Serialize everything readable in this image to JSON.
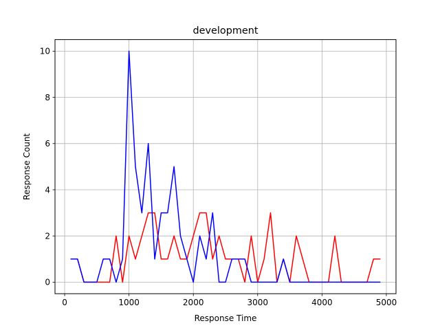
{
  "chart_data": {
    "type": "line",
    "title": "development",
    "xlabel": "Response Time",
    "ylabel": "Response Count",
    "xlim": [
      -150,
      5150
    ],
    "ylim": [
      -0.5,
      10.5
    ],
    "xticks": [
      0,
      1000,
      2000,
      3000,
      4000,
      5000
    ],
    "yticks": [
      0,
      2,
      4,
      6,
      8,
      10
    ],
    "grid": true,
    "x": [
      100,
      200,
      300,
      400,
      500,
      600,
      700,
      800,
      900,
      1000,
      1100,
      1200,
      1300,
      1400,
      1500,
      1600,
      1700,
      1800,
      1900,
      2000,
      2100,
      2200,
      2300,
      2400,
      2500,
      2600,
      2700,
      2800,
      2900,
      3000,
      3100,
      3200,
      3300,
      3400,
      3500,
      3600,
      3700,
      3800,
      3900,
      4000,
      4100,
      4200,
      4300,
      4400,
      4500,
      4600,
      4700,
      4800,
      4900
    ],
    "series": [
      {
        "color": "#ff0000",
        "values": [
          1,
          1,
          0,
          0,
          0,
          0,
          0,
          2,
          0,
          2,
          1,
          2,
          3,
          3,
          1,
          1,
          2,
          1,
          1,
          2,
          3,
          3,
          1,
          2,
          1,
          1,
          1,
          0,
          2,
          0,
          1,
          3,
          0,
          1,
          0,
          2,
          1,
          0,
          0,
          0,
          0,
          2,
          0,
          0,
          0,
          0,
          0,
          1,
          1
        ]
      },
      {
        "color": "#0000ff",
        "values": [
          1,
          1,
          0,
          0,
          0,
          1,
          1,
          0,
          1,
          10,
          5,
          3,
          6,
          1,
          3,
          3,
          5,
          2,
          1,
          0,
          2,
          1,
          3,
          0,
          0,
          1,
          1,
          1,
          0,
          0,
          0,
          0,
          0,
          1,
          0,
          0,
          0,
          0,
          0,
          0,
          0,
          0,
          0,
          0,
          0,
          0,
          0,
          0,
          0
        ]
      }
    ]
  }
}
